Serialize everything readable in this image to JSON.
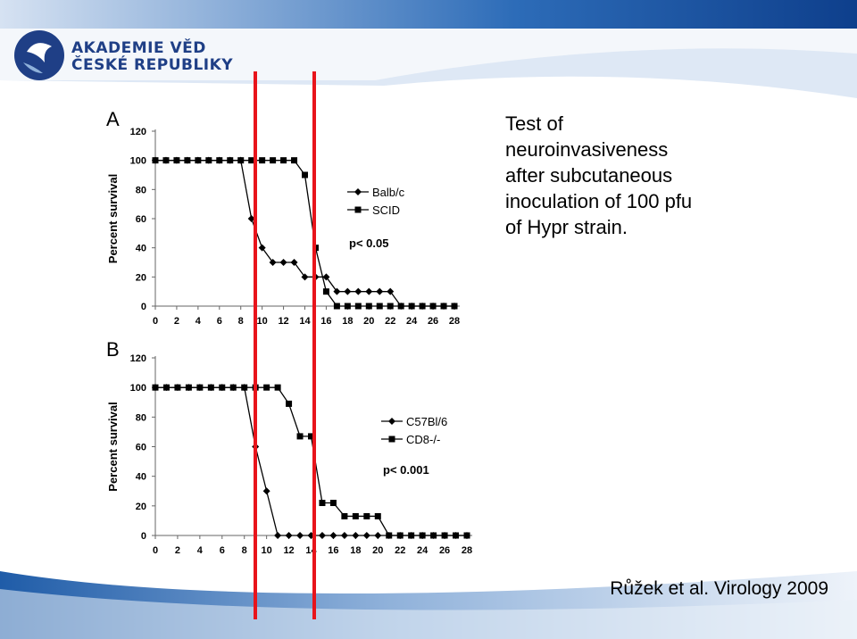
{
  "header": {
    "logo_line1": "AKADEMIE VĚD",
    "logo_line2": "ČESKÉ REPUBLIKY",
    "logo_icon": "academy-of-sciences-emblem"
  },
  "caption_lines": [
    "Test of",
    "neuroinvasiveness",
    "after subcutaneous",
    "inoculation of 100 pfu",
    "of Hypr strain."
  ],
  "citation": "Růžek et al. Virology 2009",
  "colors": {
    "marker_line": "#e8141b",
    "header_band": "#1e5aa6",
    "logo": "#1f3f86"
  },
  "chart_data": [
    {
      "panel_label": "A",
      "type": "line",
      "ylabel": "Percent survival",
      "xlabel": "",
      "xlim": [
        0,
        28
      ],
      "ylim": [
        0,
        120
      ],
      "x_ticks": [
        "0",
        "2",
        "4",
        "6",
        "8",
        "10",
        "12",
        "14",
        "16",
        "18",
        "20",
        "22",
        "24",
        "26",
        "28"
      ],
      "y_ticks": [
        "0",
        "20",
        "40",
        "60",
        "80",
        "100",
        "120"
      ],
      "annotation": "p< 0.05",
      "legend_position": "right",
      "series": [
        {
          "name": "Balb/c",
          "marker": "diamond",
          "x": [
            0,
            1,
            2,
            3,
            4,
            5,
            6,
            7,
            8,
            9,
            10,
            11,
            12,
            13,
            14,
            15,
            16,
            17,
            18,
            19,
            20,
            21,
            22,
            23,
            24,
            25,
            26,
            27,
            28
          ],
          "y": [
            100,
            100,
            100,
            100,
            100,
            100,
            100,
            100,
            100,
            60,
            40,
            30,
            30,
            30,
            20,
            20,
            20,
            10,
            10,
            10,
            10,
            10,
            10,
            0,
            0,
            0,
            0,
            0,
            0
          ]
        },
        {
          "name": "SCID",
          "marker": "square",
          "x": [
            0,
            1,
            2,
            3,
            4,
            5,
            6,
            7,
            8,
            9,
            10,
            11,
            12,
            13,
            14,
            15,
            16,
            17,
            18,
            19,
            20,
            21,
            22,
            23,
            24,
            25,
            26,
            27,
            28
          ],
          "y": [
            100,
            100,
            100,
            100,
            100,
            100,
            100,
            100,
            100,
            100,
            100,
            100,
            100,
            100,
            90,
            40,
            10,
            0,
            0,
            0,
            0,
            0,
            0,
            0,
            0,
            0,
            0,
            0,
            0
          ]
        }
      ]
    },
    {
      "panel_label": "B",
      "type": "line",
      "ylabel": "Percent survival",
      "xlabel": "",
      "xlim": [
        0,
        28
      ],
      "ylim": [
        0,
        120
      ],
      "x_ticks": [
        "0",
        "2",
        "4",
        "6",
        "8",
        "10",
        "12",
        "14",
        "16",
        "18",
        "20",
        "22",
        "24",
        "26",
        "28"
      ],
      "y_ticks": [
        "0",
        "20",
        "40",
        "60",
        "80",
        "100",
        "120"
      ],
      "annotation": "p< 0.001",
      "legend_position": "right",
      "series": [
        {
          "name": "C57Bl/6",
          "marker": "diamond",
          "x": [
            0,
            1,
            2,
            3,
            4,
            5,
            6,
            7,
            8,
            9,
            10,
            11,
            12,
            13,
            14,
            15,
            16,
            17,
            18,
            19,
            20,
            21,
            22,
            23,
            24,
            25,
            26,
            27,
            28
          ],
          "y": [
            100,
            100,
            100,
            100,
            100,
            100,
            100,
            100,
            100,
            60,
            30,
            0,
            0,
            0,
            0,
            0,
            0,
            0,
            0,
            0,
            0,
            0,
            0,
            0,
            0,
            0,
            0,
            0,
            0
          ]
        },
        {
          "name": "CD8-/-",
          "marker": "square",
          "x": [
            0,
            1,
            2,
            3,
            4,
            5,
            6,
            7,
            8,
            9,
            10,
            11,
            12,
            13,
            14,
            15,
            16,
            17,
            18,
            19,
            20,
            21,
            22,
            23,
            24,
            25,
            26,
            27,
            28
          ],
          "y": [
            100,
            100,
            100,
            100,
            100,
            100,
            100,
            100,
            100,
            100,
            100,
            100,
            89,
            67,
            67,
            22,
            22,
            13,
            13,
            13,
            13,
            0,
            0,
            0,
            0,
            0,
            0,
            0,
            0
          ]
        }
      ]
    }
  ]
}
